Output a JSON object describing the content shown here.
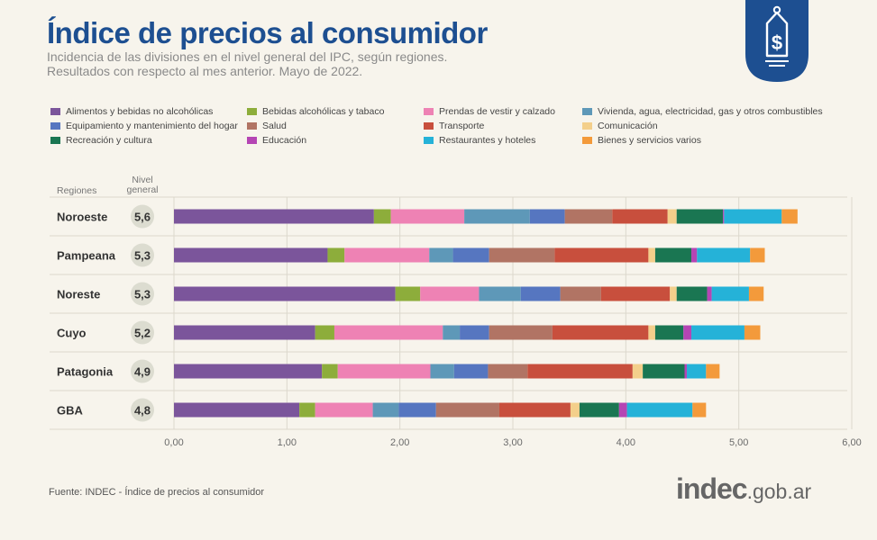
{
  "title": "Índice de precios al consumidor",
  "subtitle_lines": [
    "Incidencia de las divisiones en el nivel general del IPC, según regiones.",
    "Resultados con respecto al mes anterior. Mayo de 2022."
  ],
  "badge_icon": "price-tag-dollar-icon",
  "source": "Fuente: INDEC - Índice de precios al consumidor",
  "logo": {
    "bold": "indec",
    "rest": ".gob.ar"
  },
  "colors": {
    "title": "#1d4f91",
    "badge": "#1d4f91",
    "axis_text": "#6a6a6a"
  },
  "chart_data": {
    "type": "bar",
    "orientation": "horizontal",
    "stacked": true,
    "categories_header": "Regiones",
    "nivel_header": [
      "Nivel",
      "general"
    ],
    "categories": [
      "Noroeste",
      "Pampeana",
      "Noreste",
      "Cuyo",
      "Patagonia",
      "GBA"
    ],
    "nivel_general": [
      "5,6",
      "5,3",
      "5,3",
      "5,2",
      "4,9",
      "4,8"
    ],
    "xlim": [
      0,
      6
    ],
    "xticks": [
      "0,00",
      "1,00",
      "2,00",
      "3,00",
      "4,00",
      "5,00",
      "6,00"
    ],
    "grid": false,
    "legend_position": "top",
    "series": [
      {
        "name": "Alimentos y bebidas no alcohólicas",
        "color": "#7b559b",
        "values": [
          1.77,
          1.36,
          1.96,
          1.25,
          1.31,
          1.11
        ]
      },
      {
        "name": "Bebidas alcohólicas y tabaco",
        "color": "#8dad3b",
        "values": [
          0.15,
          0.15,
          0.22,
          0.17,
          0.14,
          0.14
        ]
      },
      {
        "name": "Prendas de vestir y calzado",
        "color": "#ee82b4",
        "values": [
          0.65,
          0.75,
          0.52,
          0.96,
          0.82,
          0.51
        ]
      },
      {
        "name": "Vivienda, agua, electricidad, gas y otros combustibles",
        "color": "#5e98b8",
        "values": [
          0.58,
          0.21,
          0.37,
          0.15,
          0.21,
          0.23
        ]
      },
      {
        "name": "Equipamiento y mantenimiento del hogar",
        "color": "#5676c0",
        "values": [
          0.31,
          0.32,
          0.35,
          0.26,
          0.3,
          0.33
        ]
      },
      {
        "name": "Salud",
        "color": "#b17464",
        "values": [
          0.42,
          0.58,
          0.36,
          0.56,
          0.35,
          0.56
        ]
      },
      {
        "name": "Transporte",
        "color": "#c84f3d",
        "values": [
          0.49,
          0.83,
          0.61,
          0.85,
          0.93,
          0.63
        ]
      },
      {
        "name": "Comunicación",
        "color": "#f3cf8b",
        "values": [
          0.08,
          0.06,
          0.06,
          0.06,
          0.09,
          0.08
        ]
      },
      {
        "name": "Recreación y cultura",
        "color": "#1a7652",
        "values": [
          0.41,
          0.32,
          0.27,
          0.25,
          0.37,
          0.35
        ]
      },
      {
        "name": "Educación",
        "color": "#b545b4",
        "values": [
          0.01,
          0.05,
          0.04,
          0.07,
          0.02,
          0.07
        ]
      },
      {
        "name": "Restaurantes y hoteles",
        "color": "#25b2d8",
        "values": [
          0.51,
          0.47,
          0.33,
          0.47,
          0.17,
          0.58
        ]
      },
      {
        "name": "Bienes y servicios varios",
        "color": "#f39a3b",
        "values": [
          0.14,
          0.13,
          0.13,
          0.14,
          0.12,
          0.12
        ]
      }
    ]
  }
}
